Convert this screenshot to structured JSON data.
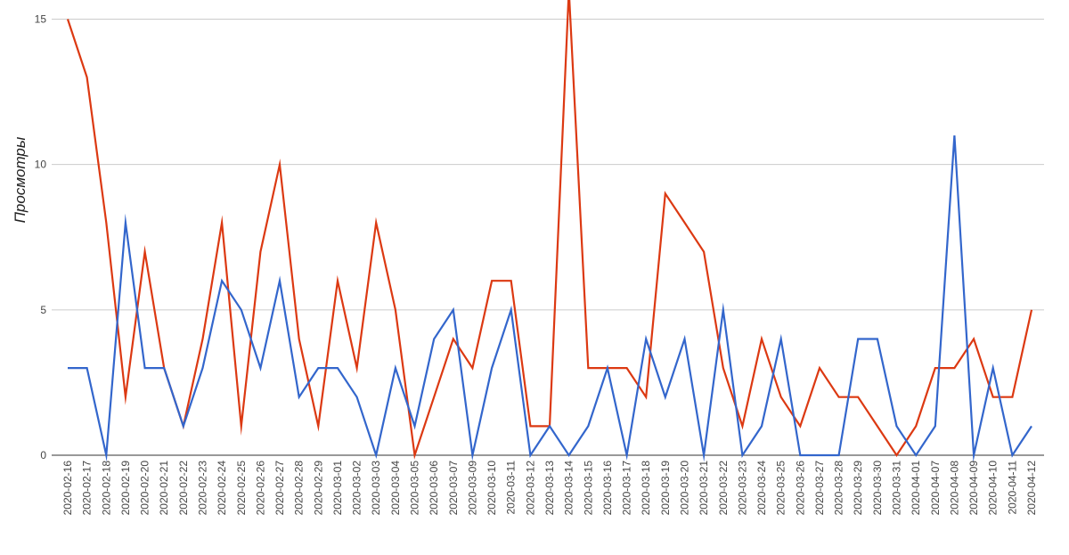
{
  "chart_data": {
    "type": "line",
    "title": "",
    "xlabel": "",
    "ylabel": "Просмотры",
    "ylim": [
      0,
      15.2
    ],
    "yticks": [
      0,
      5,
      10,
      15
    ],
    "grid": true,
    "legend": "none",
    "categories": [
      "2020-02-16",
      "2020-02-17",
      "2020-02-18",
      "2020-02-19",
      "2020-02-20",
      "2020-02-21",
      "2020-02-22",
      "2020-02-23",
      "2020-02-24",
      "2020-02-25",
      "2020-02-26",
      "2020-02-27",
      "2020-02-28",
      "2020-02-29",
      "2020-03-01",
      "2020-03-02",
      "2020-03-03",
      "2020-03-04",
      "2020-03-05",
      "2020-03-06",
      "2020-03-07",
      "2020-03-09",
      "2020-03-10",
      "2020-03-11",
      "2020-03-12",
      "2020-03-13",
      "2020-03-14",
      "2020-03-15",
      "2020-03-16",
      "2020-03-17",
      "2020-03-18",
      "2020-03-19",
      "2020-03-20",
      "2020-03-21",
      "2020-03-22",
      "2020-03-23",
      "2020-03-24",
      "2020-03-25",
      "2020-03-26",
      "2020-03-27",
      "2020-03-28",
      "2020-03-29",
      "2020-03-30",
      "2020-03-31",
      "2020-04-01",
      "2020-04-07",
      "2020-04-08",
      "2020-04-09",
      "2020-04-10",
      "2020-04-11",
      "2020-04-12"
    ],
    "series": [
      {
        "color": "#dc3912",
        "values": [
          15,
          13,
          8,
          2,
          7,
          3,
          1,
          4,
          8,
          1,
          7,
          10,
          4,
          1,
          6,
          3,
          8,
          5,
          0,
          2,
          4,
          3,
          6,
          6,
          1,
          1,
          16,
          3,
          3,
          3,
          2,
          9,
          8,
          7,
          3,
          1,
          4,
          2,
          1,
          3,
          2,
          2,
          1,
          0,
          1,
          3,
          3,
          4,
          2,
          2,
          5
        ]
      },
      {
        "color": "#3366cc",
        "values": [
          3,
          3,
          0,
          8,
          3,
          3,
          1,
          3,
          6,
          5,
          3,
          6,
          2,
          3,
          3,
          2,
          0,
          3,
          1,
          4,
          5,
          0,
          3,
          5,
          0,
          1,
          0,
          1,
          3,
          0,
          4,
          2,
          4,
          0,
          5,
          0,
          1,
          4,
          0,
          0,
          0,
          4,
          4,
          1,
          0,
          1,
          11,
          0,
          3,
          0,
          1
        ]
      }
    ]
  }
}
